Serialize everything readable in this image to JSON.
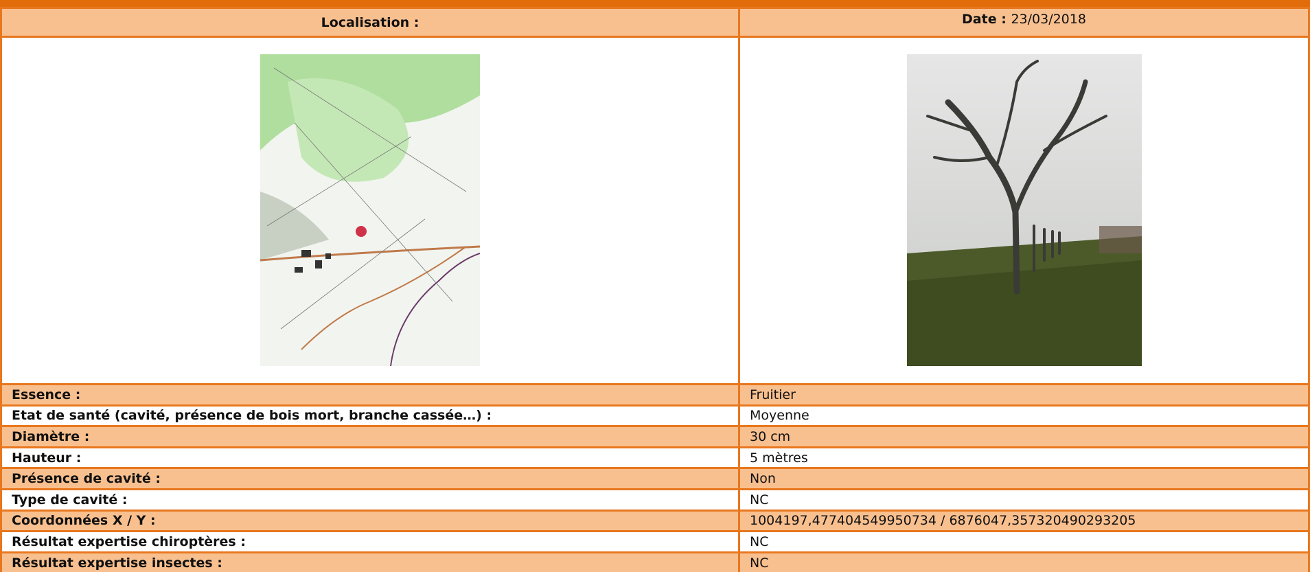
{
  "header": {
    "location_label": "Localisation :",
    "date_label": "Date :",
    "date_value": "23/03/2018"
  },
  "rows": [
    [
      "Essence :",
      "Fruitier"
    ],
    [
      "Etat de santé (cavité, présence de bois mort, branche cassée…) :",
      "Moyenne"
    ],
    [
      "Diamètre :",
      "30 cm"
    ],
    [
      "Hauteur :",
      "5 mètres"
    ],
    [
      "Présence de cavité :",
      "Non"
    ],
    [
      "Type de cavité :",
      "NC"
    ],
    [
      "Coordonnées X / Y :",
      "1004197,477404549950734 / 6876047,357320490293205"
    ],
    [
      "Résultat expertise chiroptères :",
      "NC"
    ],
    [
      "Résultat expertise insectes :",
      "NC"
    ]
  ]
}
